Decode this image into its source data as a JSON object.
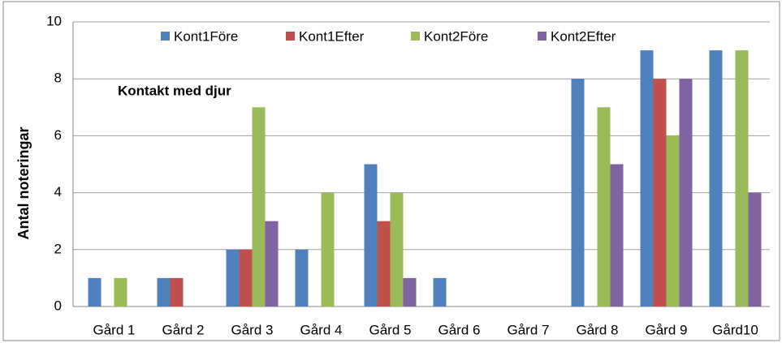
{
  "chart_data": {
    "type": "bar",
    "ylabel": "Antal noteringar",
    "annotation": "Kontakt med djur",
    "categories": [
      "Gård 1",
      "Gård 2",
      "Gård 3",
      "Gård 4",
      "Gård 5",
      "Gård 6",
      "Gård 7",
      "Gård 8",
      "Gård 9",
      "Gård10"
    ],
    "series": [
      {
        "name": "Kont1Före",
        "color": "#4f81bd",
        "values": [
          1,
          1,
          2,
          2,
          5,
          1,
          0,
          8,
          9,
          9
        ]
      },
      {
        "name": "Kont1Efter",
        "color": "#c0504d",
        "values": [
          0,
          1,
          2,
          0,
          3,
          0,
          0,
          0,
          8,
          0
        ]
      },
      {
        "name": "Kont2Före",
        "color": "#9bbb59",
        "values": [
          1,
          0,
          7,
          4,
          4,
          0,
          0,
          7,
          6,
          9
        ]
      },
      {
        "name": "Kont2Efter",
        "color": "#8064a2",
        "values": [
          0,
          0,
          3,
          0,
          1,
          0,
          0,
          5,
          8,
          4
        ]
      }
    ],
    "ylim": [
      0,
      10
    ],
    "yticks": [
      0,
      2,
      4,
      6,
      8,
      10
    ],
    "grid": true,
    "legend": "top"
  }
}
